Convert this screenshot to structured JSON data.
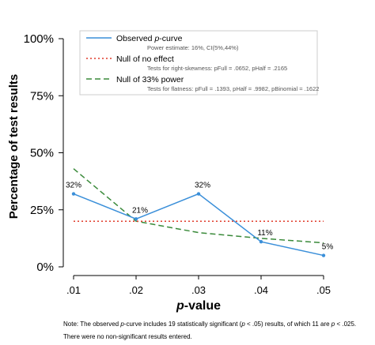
{
  "chart_data": {
    "type": "line",
    "x": [
      0.01,
      0.02,
      0.03,
      0.04,
      0.05
    ],
    "x_tick_labels": [
      ".01",
      ".02",
      ".03",
      ".04",
      ".05"
    ],
    "y_tick_labels": [
      "0%",
      "25%",
      "50%",
      "75%",
      "100%"
    ],
    "y_ticks": [
      0,
      25,
      50,
      75,
      100
    ],
    "ylim": [
      0,
      100
    ],
    "xlabel_prefix": "p",
    "xlabel_rest": "-value",
    "ylabel": "Percentage of test results",
    "series": [
      {
        "name": "Observed p-curve",
        "values": [
          32,
          21,
          32,
          11,
          5
        ],
        "color": "#3a8fd9",
        "style": "solid",
        "data_labels": [
          "32%",
          "21%",
          "32%",
          "11%",
          "5%"
        ]
      },
      {
        "name": "Null of no effect",
        "values": [
          20,
          20,
          20,
          20,
          20
        ],
        "color": "#e03b2b",
        "style": "dotted"
      },
      {
        "name": "Null of 33% power",
        "values": [
          43,
          20,
          15,
          12.5,
          10.5
        ],
        "color": "#3a8a3a",
        "style": "dashed"
      }
    ],
    "legend": {
      "position": "top",
      "entries": [
        {
          "label_prefix": "Observed ",
          "label_italic": "p",
          "label_suffix": "-curve",
          "sub": "Power estimate: 16%, CI(5%,44%)"
        },
        {
          "label_prefix": "Null of no effect",
          "label_italic": "",
          "label_suffix": "",
          "sub": "Tests for right-skewness: pFull = .0652,  pHalf = .2165"
        },
        {
          "label_prefix": "Null of 33% power",
          "label_italic": "",
          "label_suffix": "",
          "sub": "Tests for flatness: pFull = .1393,  pHalf = .9982,  pBinomial = .1622"
        }
      ]
    },
    "grid": false
  },
  "note": {
    "line1": "Note: The observed p-curve includes 19 statistically significant (p < .05) results, of which 11 are p < .025.",
    "line2": "There were no non-significant results entered."
  }
}
